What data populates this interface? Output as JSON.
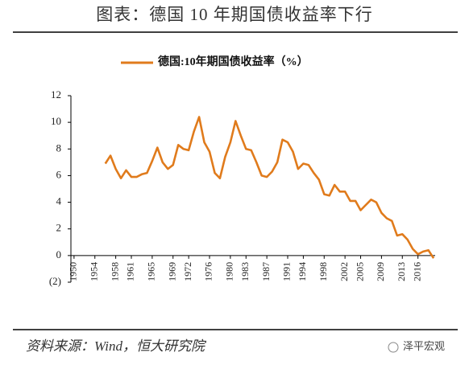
{
  "chart_data": {
    "type": "line",
    "title": "图表：德国 10 年期国债收益率下行",
    "source": "资料来源：Wind，恒大研究院",
    "watermark": "泽平宏观",
    "x": [
      1956,
      1957,
      1958,
      1959,
      1960,
      1961,
      1962,
      1963,
      1964,
      1965,
      1966,
      1967,
      1968,
      1969,
      1970,
      1971,
      1972,
      1973,
      1974,
      1975,
      1976,
      1977,
      1978,
      1979,
      1980,
      1981,
      1982,
      1983,
      1984,
      1985,
      1986,
      1987,
      1988,
      1989,
      1990,
      1991,
      1992,
      1993,
      1994,
      1995,
      1996,
      1997,
      1998,
      1999,
      2000,
      2001,
      2002,
      2003,
      2004,
      2005,
      2006,
      2007,
      2008,
      2009,
      2010,
      2011,
      2012,
      2013,
      2014,
      2015,
      2016,
      2017,
      2018,
      2019
    ],
    "series": [
      {
        "name": "德国:10年期国债收益率（%）",
        "color": "#e07b1c",
        "values": [
          6.9,
          7.5,
          6.5,
          5.8,
          6.4,
          5.9,
          5.9,
          6.1,
          6.2,
          7.1,
          8.1,
          7.0,
          6.5,
          6.8,
          8.3,
          8.0,
          7.9,
          9.3,
          10.4,
          8.5,
          7.8,
          6.2,
          5.8,
          7.4,
          8.5,
          10.1,
          9.0,
          8.0,
          7.9,
          7.0,
          6.0,
          5.9,
          6.3,
          7.0,
          8.7,
          8.5,
          7.8,
          6.5,
          6.9,
          6.8,
          6.2,
          5.7,
          4.6,
          4.5,
          5.3,
          4.8,
          4.8,
          4.1,
          4.1,
          3.4,
          3.8,
          4.2,
          4.0,
          3.2,
          2.8,
          2.6,
          1.5,
          1.6,
          1.2,
          0.5,
          0.1,
          0.3,
          0.4,
          -0.2
        ]
      }
    ],
    "xlim": [
      1949.4,
      2019.3
    ],
    "xticks": [
      1950,
      1954,
      1958,
      1961,
      1965,
      1969,
      1972,
      1976,
      1980,
      1983,
      1987,
      1991,
      1994,
      1998,
      2002,
      2005,
      2009,
      2013,
      2016
    ],
    "ylim": [
      -2,
      12
    ],
    "yticks": [
      {
        "value": -2,
        "label": "(2)"
      },
      0,
      2,
      4,
      6,
      8,
      10,
      12
    ],
    "negative_label_color": "#c00000",
    "grid": false
  }
}
